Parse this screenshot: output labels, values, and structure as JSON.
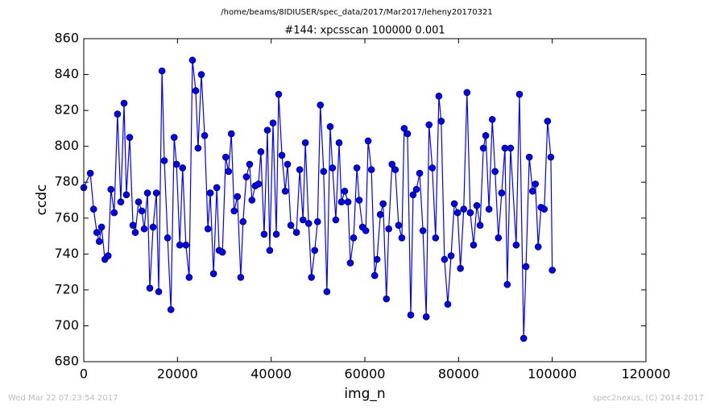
{
  "chart_data": {
    "type": "line",
    "suptitle": "/home/beams/8IDIUSER/spec_data/2017/Mar2017/leheny20170321",
    "title": "#144: xpcsscan 100000 0.001",
    "x_label": "img_n",
    "y_label": "ccdc",
    "footer_left": "Wed Mar 22 07:23:54 2017",
    "footer_right": "spec2nexus, (C) 2014-2017",
    "x": [
      0,
      1400,
      2100,
      2800,
      3300,
      3800,
      4500,
      5200,
      5800,
      6500,
      7200,
      7900,
      8600,
      9100,
      9800,
      10500,
      11000,
      11700,
      12400,
      12900,
      13600,
      14100,
      14800,
      15500,
      16000,
      16700,
      17200,
      17900,
      18600,
      19300,
      19800,
      20500,
      21100,
      21800,
      22500,
      23200,
      23900,
      24400,
      25100,
      25800,
      26500,
      27000,
      27700,
      28400,
      28900,
      29600,
      30300,
      30900,
      31500,
      32100,
      32800,
      33500,
      34000,
      34700,
      35400,
      35900,
      36600,
      37300,
      37800,
      38500,
      39200,
      39700,
      40400,
      41100,
      41600,
      42300,
      43000,
      43500,
      44200,
      45400,
      46100,
      46800,
      47300,
      48000,
      48600,
      49300,
      49900,
      50500,
      51200,
      51900,
      52600,
      53100,
      53800,
      54500,
      55000,
      55700,
      56400,
      56900,
      57600,
      58300,
      58800,
      59500,
      60200,
      60700,
      61400,
      62100,
      62600,
      63300,
      63900,
      64600,
      65100,
      65800,
      66500,
      67200,
      67900,
      68400,
      69100,
      69800,
      70300,
      71000,
      71700,
      72400,
      73100,
      73700,
      74400,
      75100,
      75800,
      76300,
      77000,
      77700,
      78400,
      79100,
      79800,
      80400,
      81100,
      81800,
      82500,
      83200,
      83900,
      84600,
      85300,
      85800,
      86500,
      87200,
      87800,
      88500,
      89200,
      89900,
      90400,
      91100,
      92300,
      93000,
      93900,
      94400,
      95100,
      95800,
      96400,
      97000,
      97600,
      98300,
      99000,
      99700,
      100000
    ],
    "series": [
      {
        "name": "ccdc",
        "color": "#0000ff",
        "values": [
          777,
          785,
          765,
          752,
          747,
          755,
          737,
          739,
          776,
          763,
          818,
          769,
          824,
          773,
          805,
          756,
          752,
          769,
          764,
          754,
          774,
          721,
          755,
          774,
          719,
          842,
          792,
          749,
          709,
          805,
          790,
          745,
          788,
          745,
          727,
          848,
          831,
          799,
          840,
          806,
          754,
          774,
          729,
          777,
          742,
          741,
          794,
          786,
          807,
          764,
          772,
          727,
          758,
          783,
          790,
          770,
          778,
          779,
          797,
          751,
          809,
          742,
          813,
          751,
          829,
          795,
          775,
          790,
          756,
          752,
          787,
          759,
          802,
          757,
          727,
          742,
          758,
          823,
          786,
          719,
          811,
          788,
          759,
          802,
          769,
          775,
          769,
          735,
          749,
          788,
          770,
          755,
          753,
          803,
          787,
          728,
          737,
          762,
          768,
          715,
          754,
          790,
          787,
          756,
          749,
          810,
          807,
          706,
          773,
          776,
          785,
          753,
          705,
          812,
          788,
          749,
          828,
          814,
          737,
          712,
          739,
          768,
          763,
          732,
          765,
          830,
          763,
          745,
          767,
          756,
          799,
          806,
          765,
          815,
          786,
          749,
          774,
          799,
          723,
          799,
          745,
          829,
          693,
          733,
          794,
          775,
          779,
          744,
          766,
          765,
          814,
          794,
          731
        ]
      }
    ],
    "xlim": [
      0,
      120000
    ],
    "xticks": [
      0,
      20000,
      40000,
      60000,
      80000,
      100000,
      120000
    ],
    "ylim": [
      680,
      860
    ],
    "yticks": [
      680,
      700,
      720,
      740,
      760,
      780,
      800,
      820,
      840,
      860
    ]
  }
}
